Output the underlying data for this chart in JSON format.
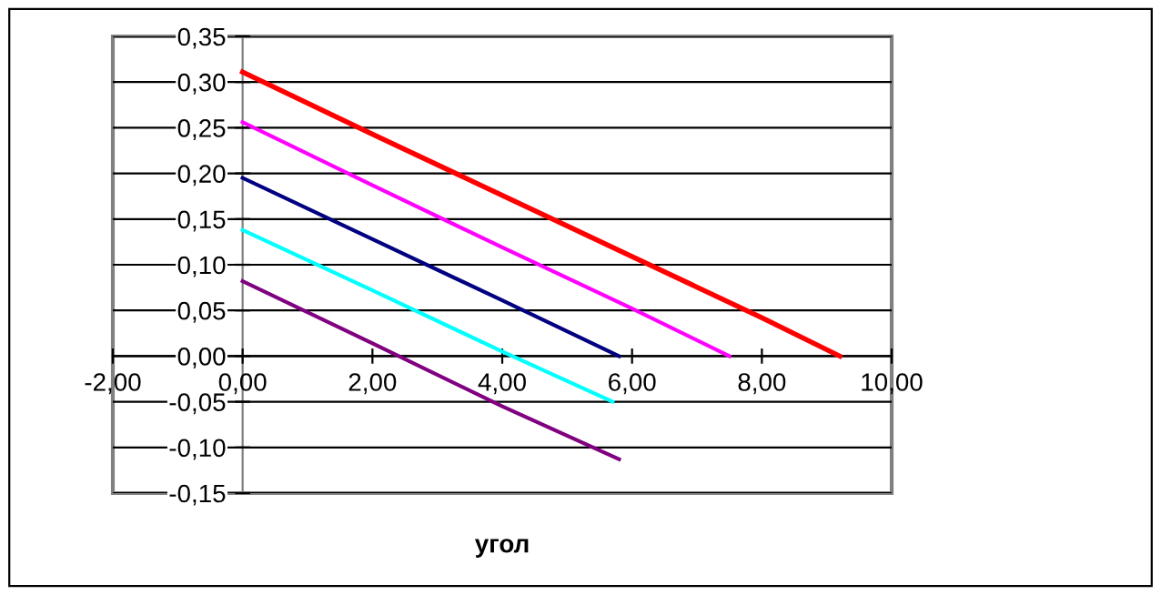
{
  "chart_data": {
    "type": "line",
    "xlabel": "угол",
    "grid": "y",
    "marker": "none",
    "line_style": "solid",
    "xlim": [
      -2,
      10
    ],
    "ylim": [
      -0.15,
      0.35
    ],
    "xticks": [
      {
        "value": -2,
        "label": "-2,00"
      },
      {
        "value": 0,
        "label": "0,00"
      },
      {
        "value": 2,
        "label": "2,00"
      },
      {
        "value": 4,
        "label": "4,00"
      },
      {
        "value": 6,
        "label": "6,00"
      },
      {
        "value": 8,
        "label": "8,00"
      },
      {
        "value": 10,
        "label": "10,00"
      }
    ],
    "yticks": [
      {
        "value": -0.15,
        "label": "-0,15"
      },
      {
        "value": -0.1,
        "label": "-0,10"
      },
      {
        "value": -0.05,
        "label": "-0,05"
      },
      {
        "value": 0,
        "label": "0,00"
      },
      {
        "value": 0.05,
        "label": "0,05"
      },
      {
        "value": 0.1,
        "label": "0,10"
      },
      {
        "value": 0.15,
        "label": "0,15"
      },
      {
        "value": 0.2,
        "label": "0,20"
      },
      {
        "value": 0.25,
        "label": "0,25"
      },
      {
        "value": 0.3,
        "label": "0,30"
      },
      {
        "value": 0.35,
        "label": "0,35"
      }
    ],
    "series": [
      {
        "color": "#ff0000",
        "x": [
          0,
          2,
          4,
          6,
          8,
          9.2
        ],
        "values": [
          0.311,
          0.243,
          0.176,
          0.109,
          0.042,
          0
        ]
      },
      {
        "color": "#ff00ff",
        "x": [
          0,
          2,
          4,
          6,
          7.5
        ],
        "values": [
          0.256,
          0.187,
          0.119,
          0.052,
          0
        ]
      },
      {
        "color": "#000080",
        "x": [
          0,
          2,
          4,
          5.8
        ],
        "values": [
          0.195,
          0.128,
          0.061,
          0
        ]
      },
      {
        "color": "#00ffff",
        "x": [
          0,
          2,
          4,
          5.7
        ],
        "values": [
          0.138,
          0.072,
          0.005,
          -0.05
        ]
      },
      {
        "color": "#800080",
        "x": [
          0,
          2,
          4,
          5.8
        ],
        "values": [
          0.082,
          0.014,
          -0.055,
          -0.113
        ]
      }
    ]
  }
}
